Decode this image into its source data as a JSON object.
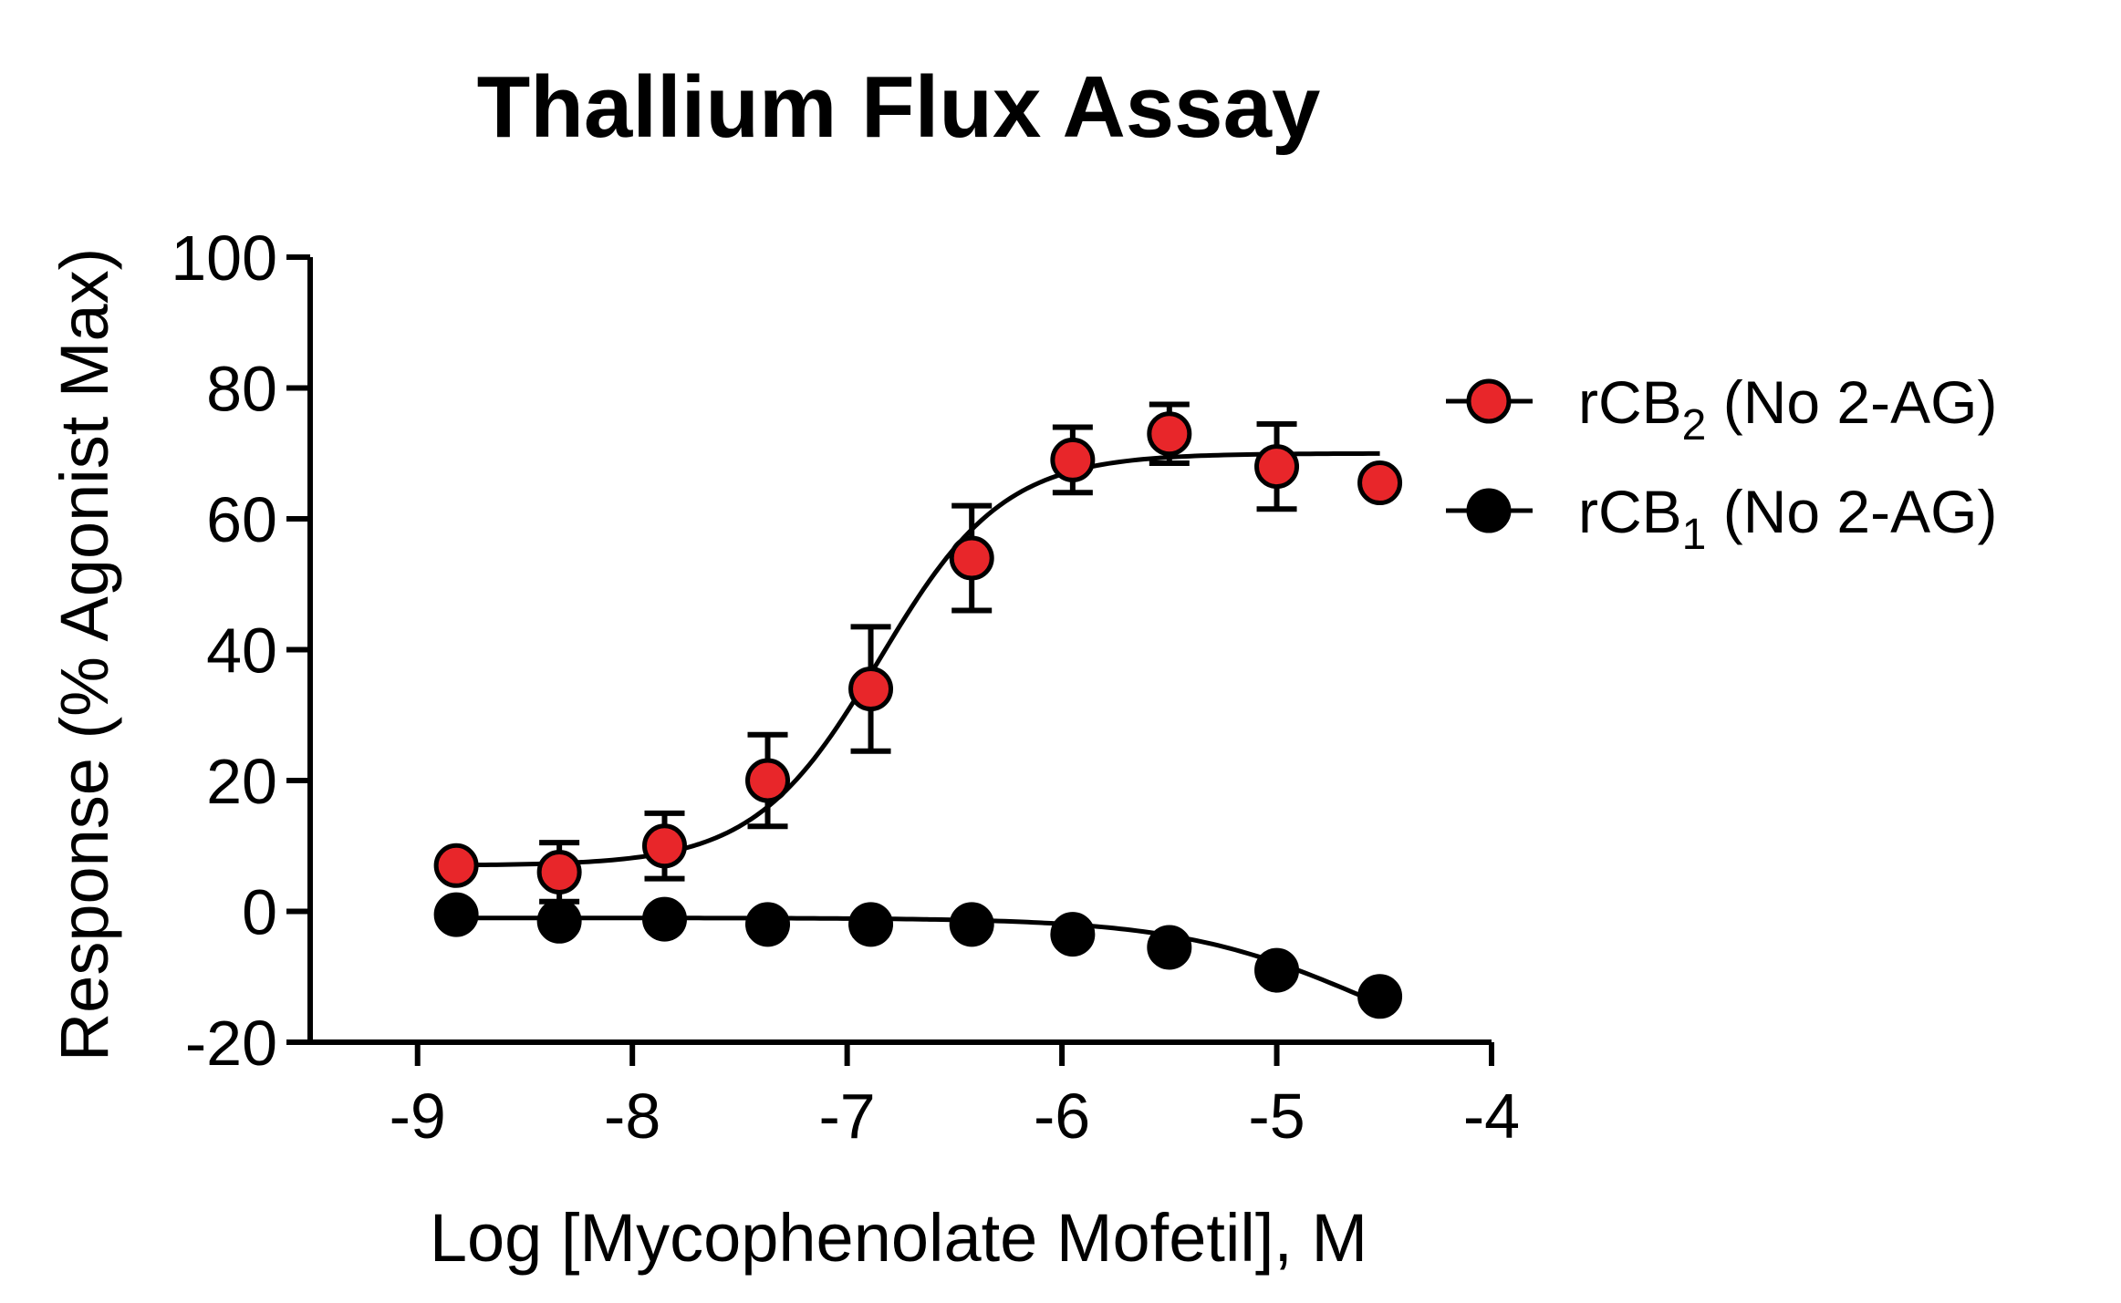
{
  "chart_data": {
    "type": "scatter",
    "title": "Thallium Flux Assay",
    "xlabel": "Log [Mycophenolate Mofetil], M",
    "ylabel": "Response (% Agonist Max)",
    "xlim": [
      -9.5,
      -4
    ],
    "ylim": [
      -20,
      100
    ],
    "x_ticks": [
      "-9",
      "-8",
      "-7",
      "-6",
      "-5",
      "-4"
    ],
    "y_ticks": [
      "-20",
      "0",
      "20",
      "40",
      "60",
      "80",
      "100"
    ],
    "grid": false,
    "legend_position": "right",
    "colors": {
      "rCB2": "#e8262a",
      "rCB1": "#000000",
      "axis": "#000000"
    },
    "series": [
      {
        "name": "rCB2 (No 2-AG)",
        "label_main": "rCB",
        "label_sub": "2",
        "label_rest": " (No 2-AG)",
        "color": "#e8262a",
        "x": [
          -8.82,
          -8.34,
          -7.85,
          -7.37,
          -6.89,
          -6.42,
          -5.95,
          -5.5,
          -5.0,
          -4.52
        ],
        "y": [
          7,
          6,
          10,
          20,
          34,
          54,
          69,
          73,
          68,
          65.5
        ],
        "error": [
          0,
          4.5,
          5,
          7,
          9.5,
          8,
          5,
          4.5,
          6.5,
          0
        ],
        "fit": {
          "bottom": 7,
          "top": 70,
          "logEC50": -6.85,
          "hill": 1.5
        }
      },
      {
        "name": "rCB1 (No 2-AG)",
        "label_main": "rCB",
        "label_sub": "1",
        "label_rest": " (No 2-AG)",
        "color": "#000000",
        "x": [
          -8.82,
          -8.34,
          -7.85,
          -7.37,
          -6.89,
          -6.42,
          -5.95,
          -5.5,
          -5.0,
          -4.52
        ],
        "y": [
          -0.5,
          -1.5,
          -1.2,
          -2,
          -2,
          -2,
          -3.5,
          -5.5,
          -9,
          -13
        ],
        "error": [
          0,
          0,
          0,
          0,
          0,
          0,
          0,
          0,
          0,
          0
        ],
        "fit": {
          "bottom": -1,
          "top": -25,
          "logEC50": -4.6,
          "hill": 1.0
        }
      }
    ]
  }
}
